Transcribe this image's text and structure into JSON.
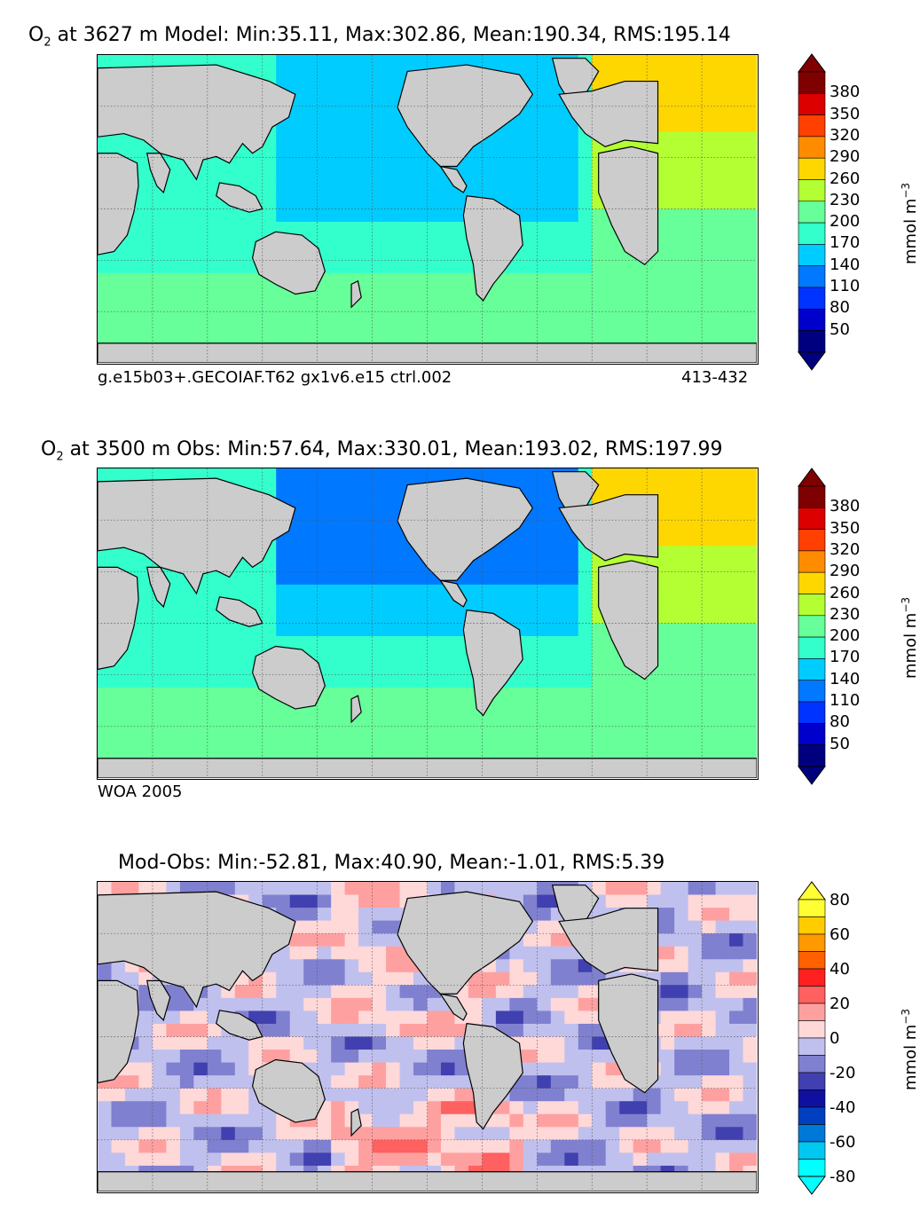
{
  "chart_data": [
    {
      "type": "heatmap",
      "panel": "model",
      "title_var": "O",
      "title_sub": "2",
      "title_rest": "at 3627 m Model: Min:35.11, Max:302.86, Mean:190.34, RMS:195.14",
      "stats": {
        "min": 35.11,
        "max": 302.86,
        "mean": 190.34,
        "rms": 195.14
      },
      "depth_m": 3627,
      "caption_left": "g.e15b03+.GECOIAF.T62 gx1v6.e15 ctrl.002",
      "caption_right": "413-432",
      "colorbar": {
        "unit": "mmol m",
        "unit_exp": "−3",
        "ticks": [
          "380",
          "350",
          "320",
          "290",
          "260",
          "230",
          "200",
          "170",
          "140",
          "110",
          "80",
          "50"
        ],
        "levels": [
          20,
          50,
          80,
          110,
          140,
          170,
          200,
          230,
          260,
          290,
          320,
          350,
          380,
          410
        ],
        "colors": [
          "#00007f",
          "#0000cc",
          "#0033ff",
          "#0078ff",
          "#00ccff",
          "#33ffcc",
          "#66ff99",
          "#b3ff33",
          "#ffd700",
          "#ff8c00",
          "#ff4000",
          "#dd0000",
          "#7f0000"
        ],
        "extend": "both"
      },
      "grid": true
    },
    {
      "type": "heatmap",
      "panel": "obs",
      "title_var": "O",
      "title_sub": "2",
      "title_rest": "at 3500 m Obs: Min:57.64, Max:330.01, Mean:193.02, RMS:197.99",
      "stats": {
        "min": 57.64,
        "max": 330.01,
        "mean": 193.02,
        "rms": 197.99
      },
      "depth_m": 3500,
      "caption_left": "WOA 2005",
      "colorbar": {
        "unit": "mmol m",
        "unit_exp": "−3",
        "ticks": [
          "380",
          "350",
          "320",
          "290",
          "260",
          "230",
          "200",
          "170",
          "140",
          "110",
          "80",
          "50"
        ],
        "levels": [
          20,
          50,
          80,
          110,
          140,
          170,
          200,
          230,
          260,
          290,
          320,
          350,
          380,
          410
        ],
        "colors": [
          "#00007f",
          "#0000cc",
          "#0033ff",
          "#0078ff",
          "#00ccff",
          "#33ffcc",
          "#66ff99",
          "#b3ff33",
          "#ffd700",
          "#ff8c00",
          "#ff4000",
          "#dd0000",
          "#7f0000"
        ],
        "extend": "both"
      },
      "grid": true
    },
    {
      "type": "heatmap",
      "panel": "diff",
      "title": "Mod-Obs: Min:-52.81, Max:40.90, Mean:-1.01, RMS:5.39",
      "stats": {
        "min": -52.81,
        "max": 40.9,
        "mean": -1.01,
        "rms": 5.39
      },
      "colorbar": {
        "unit": "mmol m",
        "unit_exp": "−3",
        "ticks": [
          "80",
          "60",
          "40",
          "20",
          "0",
          "-20",
          "-40",
          "-60",
          "-80"
        ],
        "levels": [
          -80,
          -70,
          -60,
          -50,
          -40,
          -30,
          -20,
          -10,
          0,
          10,
          20,
          30,
          40,
          50,
          60,
          70,
          80
        ],
        "colors": [
          "#00ffff",
          "#00c8f0",
          "#0078d8",
          "#0040c0",
          "#1010a0",
          "#4040b0",
          "#8080d0",
          "#c0c0ee",
          "#ffd8d8",
          "#ffa0a0",
          "#ff6060",
          "#ff2020",
          "#ff6000",
          "#ff9900",
          "#ffcc00",
          "#ffff33"
        ],
        "extend": "both"
      },
      "grid": true
    }
  ]
}
